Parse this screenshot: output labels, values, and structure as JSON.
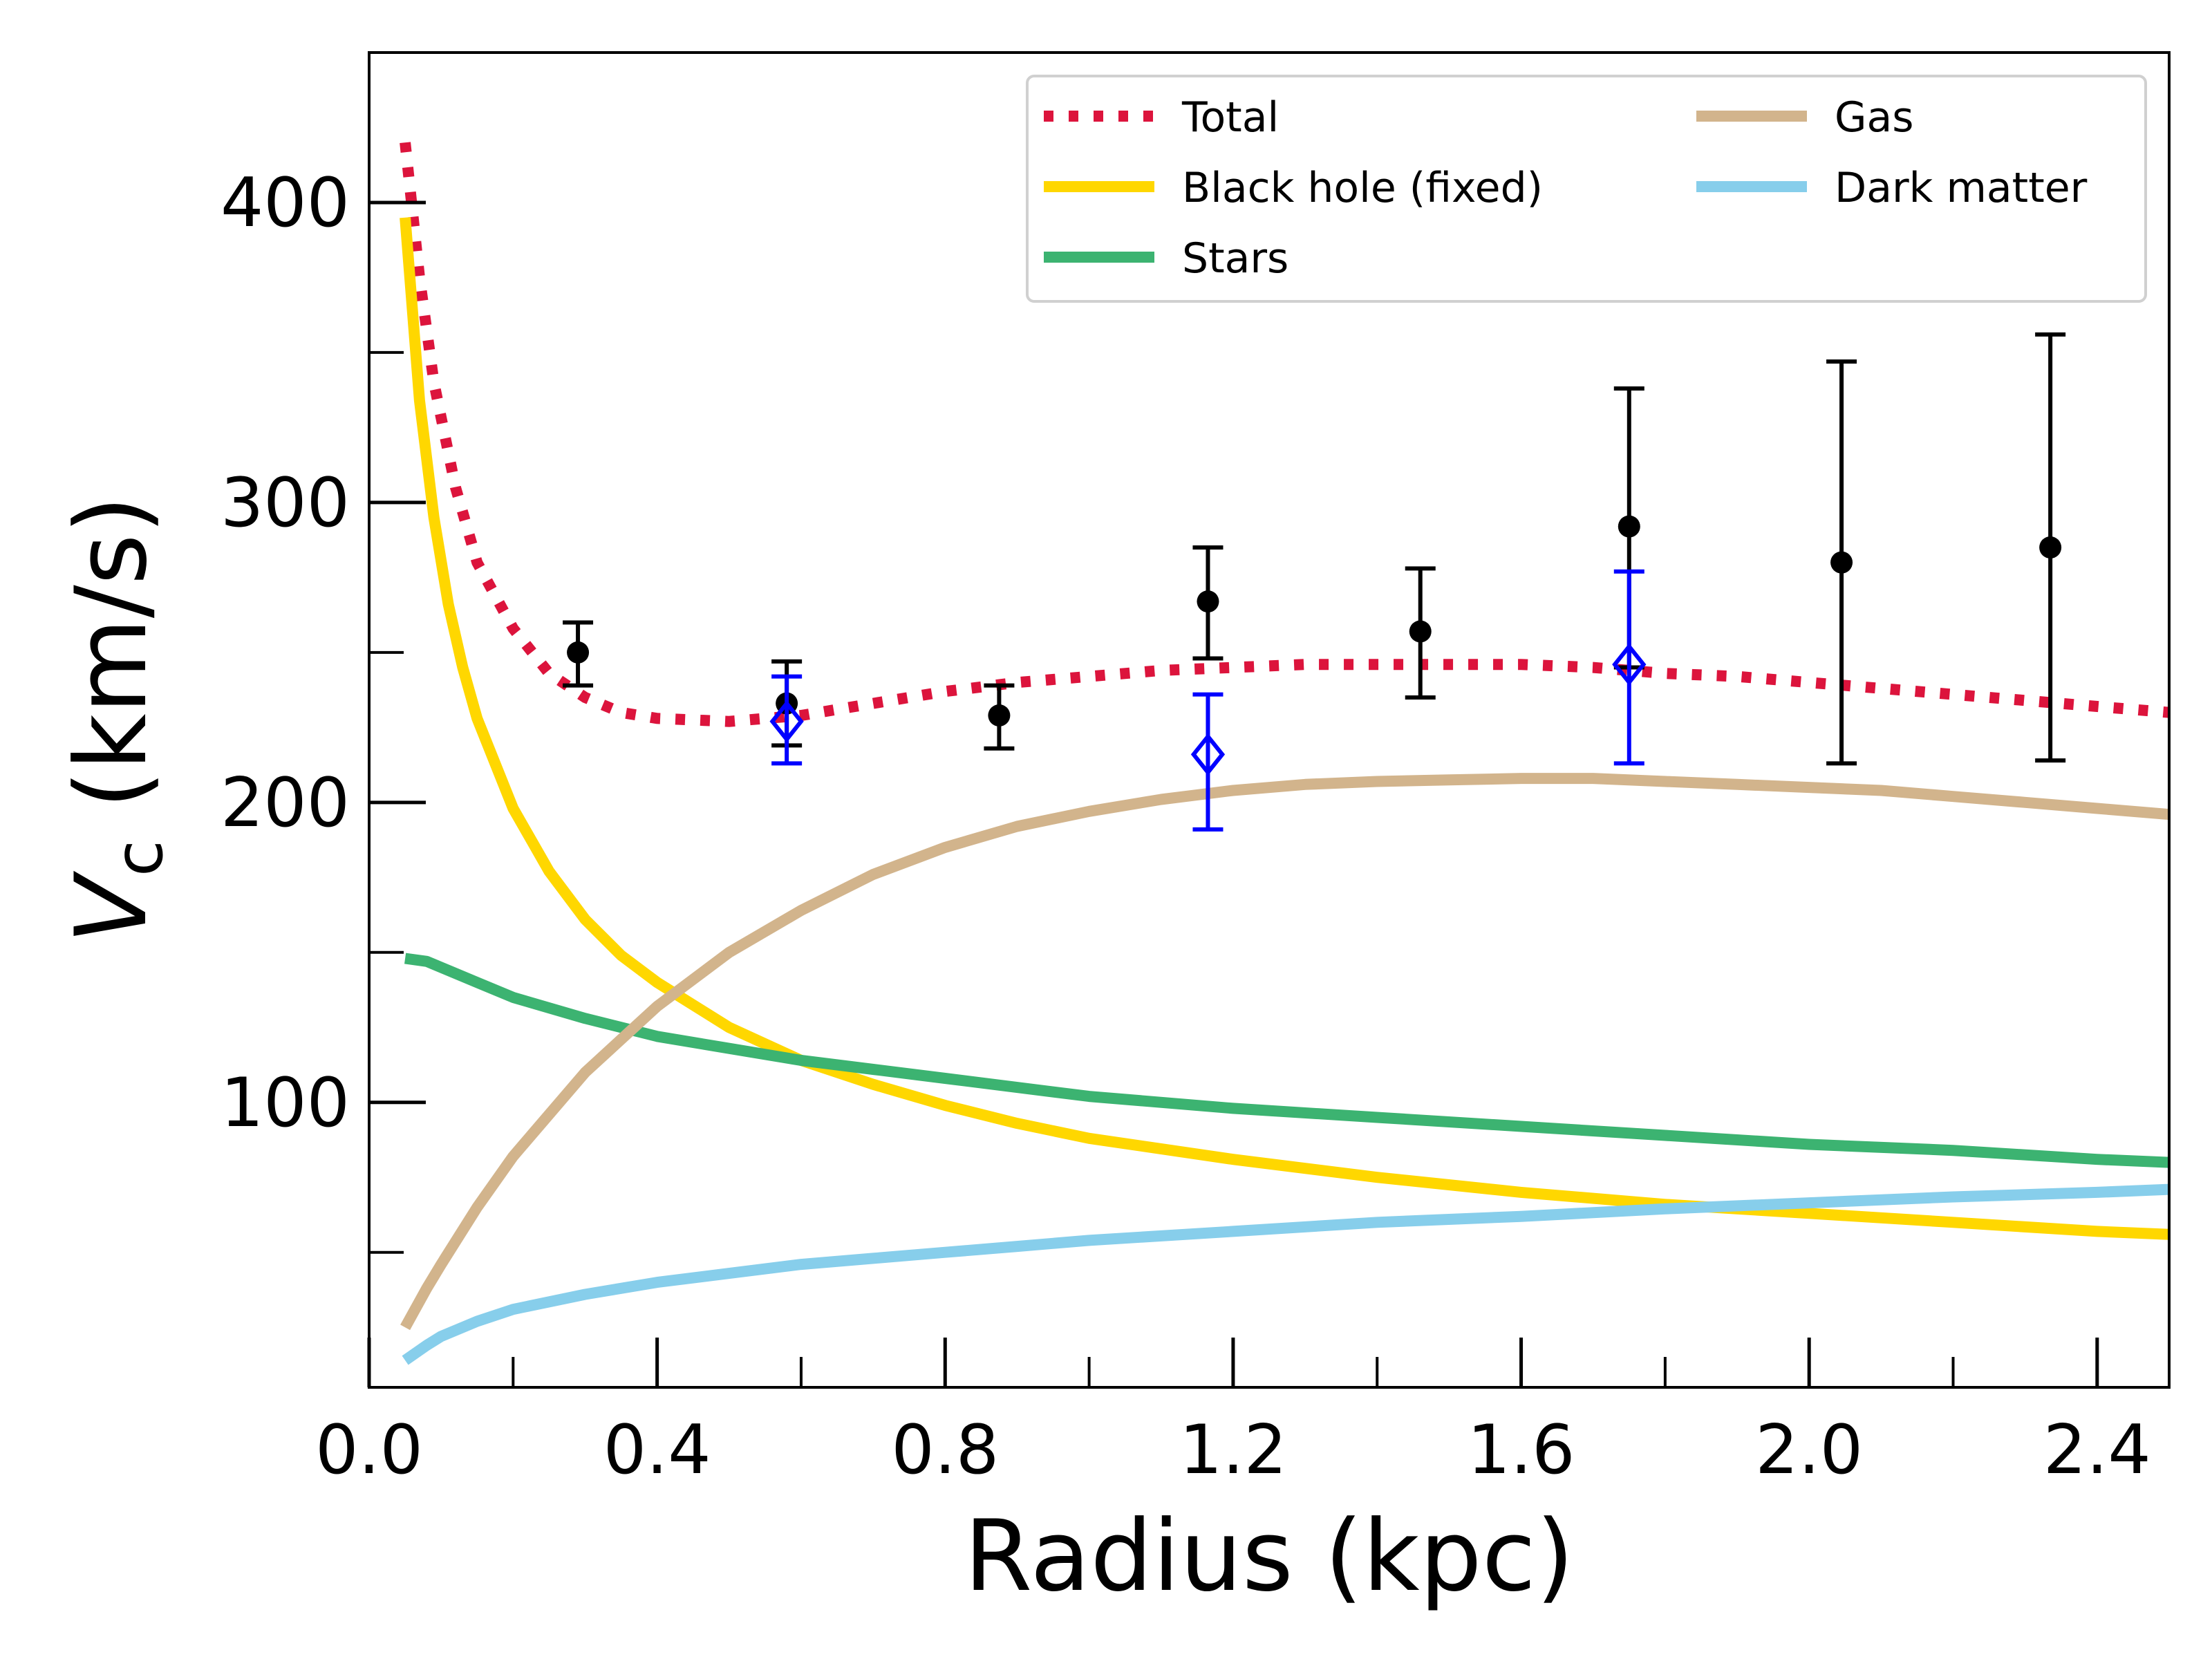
{
  "chart_data": {
    "type": "line",
    "xlabel": "Radius (kpc)",
    "ylabel_main": "V",
    "ylabel_sub": "c",
    "ylabel_rest": " (km/s)",
    "xlim": [
      0.0,
      2.5
    ],
    "ylim": [
      5,
      450
    ],
    "x_ticks": [
      0.0,
      0.4,
      0.8,
      1.2,
      1.6,
      2.0,
      2.4
    ],
    "x_tick_labels": [
      "0.0",
      "0.4",
      "0.8",
      "1.2",
      "1.6",
      "2.0",
      "2.4"
    ],
    "x_minor_ticks": [
      0.2,
      0.6,
      1.0,
      1.4,
      1.8,
      2.2
    ],
    "y_ticks": [
      100,
      200,
      300,
      400
    ],
    "y_tick_labels": [
      "100",
      "200",
      "300",
      "400"
    ],
    "y_minor_ticks": [
      50,
      150,
      250,
      350
    ],
    "grid": false,
    "legend_position": "top-right",
    "series": [
      {
        "name": "Total",
        "style": "dotted",
        "color": "#dc143c",
        "points": [
          [
            0.05,
            420
          ],
          [
            0.07,
            375
          ],
          [
            0.09,
            340
          ],
          [
            0.12,
            305
          ],
          [
            0.15,
            280
          ],
          [
            0.2,
            258
          ],
          [
            0.25,
            243
          ],
          [
            0.3,
            235
          ],
          [
            0.35,
            230
          ],
          [
            0.4,
            228
          ],
          [
            0.5,
            227
          ],
          [
            0.6,
            229
          ],
          [
            0.7,
            233
          ],
          [
            0.8,
            237
          ],
          [
            0.9,
            240
          ],
          [
            1.0,
            242
          ],
          [
            1.1,
            244
          ],
          [
            1.2,
            245
          ],
          [
            1.3,
            246
          ],
          [
            1.4,
            246
          ],
          [
            1.5,
            246
          ],
          [
            1.6,
            246
          ],
          [
            1.7,
            245
          ],
          [
            1.8,
            243
          ],
          [
            1.9,
            242
          ],
          [
            2.0,
            240
          ],
          [
            2.1,
            238
          ],
          [
            2.2,
            236
          ],
          [
            2.3,
            234
          ],
          [
            2.4,
            232
          ],
          [
            2.5,
            230
          ]
        ]
      },
      {
        "name": "Black hole (fixed)",
        "style": "solid",
        "color": "#ffd700",
        "points": [
          [
            0.05,
            395
          ],
          [
            0.07,
            334
          ],
          [
            0.09,
            295
          ],
          [
            0.11,
            266
          ],
          [
            0.13,
            245
          ],
          [
            0.15,
            228
          ],
          [
            0.2,
            198
          ],
          [
            0.25,
            177
          ],
          [
            0.3,
            161
          ],
          [
            0.35,
            149
          ],
          [
            0.4,
            140
          ],
          [
            0.5,
            125
          ],
          [
            0.6,
            114
          ],
          [
            0.7,
            106
          ],
          [
            0.8,
            99
          ],
          [
            0.9,
            93
          ],
          [
            1.0,
            88
          ],
          [
            1.2,
            81
          ],
          [
            1.4,
            75
          ],
          [
            1.6,
            70
          ],
          [
            1.8,
            66
          ],
          [
            2.0,
            63
          ],
          [
            2.2,
            60
          ],
          [
            2.4,
            57
          ],
          [
            2.5,
            56
          ]
        ]
      },
      {
        "name": "Stars",
        "style": "solid",
        "color": "#3cb371",
        "points": [
          [
            0.05,
            148
          ],
          [
            0.08,
            147
          ],
          [
            0.1,
            145
          ],
          [
            0.15,
            140
          ],
          [
            0.2,
            135
          ],
          [
            0.3,
            128
          ],
          [
            0.4,
            122
          ],
          [
            0.5,
            118
          ],
          [
            0.6,
            114
          ],
          [
            0.7,
            111
          ],
          [
            0.8,
            108
          ],
          [
            0.9,
            105
          ],
          [
            1.0,
            102
          ],
          [
            1.2,
            98
          ],
          [
            1.4,
            95
          ],
          [
            1.6,
            92
          ],
          [
            1.8,
            89
          ],
          [
            2.0,
            86
          ],
          [
            2.2,
            84
          ],
          [
            2.4,
            81
          ],
          [
            2.5,
            80
          ]
        ]
      },
      {
        "name": "Gas",
        "style": "solid",
        "color": "#d2b48c",
        "points": [
          [
            0.05,
            25
          ],
          [
            0.08,
            38
          ],
          [
            0.1,
            46
          ],
          [
            0.15,
            65
          ],
          [
            0.2,
            82
          ],
          [
            0.3,
            110
          ],
          [
            0.4,
            132
          ],
          [
            0.5,
            150
          ],
          [
            0.6,
            164
          ],
          [
            0.7,
            176
          ],
          [
            0.8,
            185
          ],
          [
            0.9,
            192
          ],
          [
            1.0,
            197
          ],
          [
            1.1,
            201
          ],
          [
            1.2,
            204
          ],
          [
            1.3,
            206
          ],
          [
            1.4,
            207
          ],
          [
            1.5,
            207.5
          ],
          [
            1.6,
            208
          ],
          [
            1.7,
            208
          ],
          [
            1.8,
            207
          ],
          [
            1.9,
            206
          ],
          [
            2.0,
            205
          ],
          [
            2.1,
            204
          ],
          [
            2.2,
            202
          ],
          [
            2.3,
            200
          ],
          [
            2.4,
            198
          ],
          [
            2.5,
            196
          ]
        ]
      },
      {
        "name": "Dark matter",
        "style": "solid",
        "color": "#87ceeb",
        "points": [
          [
            0.05,
            14
          ],
          [
            0.08,
            19
          ],
          [
            0.1,
            22
          ],
          [
            0.15,
            27
          ],
          [
            0.2,
            31
          ],
          [
            0.3,
            36
          ],
          [
            0.4,
            40
          ],
          [
            0.5,
            43
          ],
          [
            0.6,
            46
          ],
          [
            0.7,
            48
          ],
          [
            0.8,
            50
          ],
          [
            0.9,
            52
          ],
          [
            1.0,
            54
          ],
          [
            1.2,
            57
          ],
          [
            1.4,
            60
          ],
          [
            1.6,
            62
          ],
          [
            1.8,
            64.5
          ],
          [
            2.0,
            66.5
          ],
          [
            2.2,
            68.5
          ],
          [
            2.4,
            70
          ],
          [
            2.5,
            71
          ]
        ]
      }
    ],
    "data_points": [
      {
        "marker": "circle",
        "color": "#000000",
        "points": [
          {
            "x": 0.29,
            "y": 250,
            "err_low": 239,
            "err_high": 260
          },
          {
            "x": 0.58,
            "y": 233,
            "err_low": 219,
            "err_high": 247
          },
          {
            "x": 0.875,
            "y": 229,
            "err_low": 218,
            "err_high": 239
          },
          {
            "x": 1.165,
            "y": 267,
            "err_low": 248,
            "err_high": 285
          },
          {
            "x": 1.46,
            "y": 257,
            "err_low": 235,
            "err_high": 278
          },
          {
            "x": 1.75,
            "y": 292,
            "err_low": 245,
            "err_high": 338
          },
          {
            "x": 2.045,
            "y": 280,
            "err_low": 213,
            "err_high": 347
          },
          {
            "x": 2.335,
            "y": 285,
            "err_low": 214,
            "err_high": 356
          }
        ]
      },
      {
        "marker": "diamond",
        "color": "#0000ff",
        "points": [
          {
            "x": 0.58,
            "y": 227,
            "err_low": 213,
            "err_high": 242
          },
          {
            "x": 1.165,
            "y": 216,
            "err_low": 191,
            "err_high": 236
          },
          {
            "x": 1.75,
            "y": 246,
            "err_low": 213,
            "err_high": 277
          }
        ]
      }
    ],
    "legend": [
      {
        "label": "Total",
        "series_index": 0
      },
      {
        "label": "Black hole (fixed)",
        "series_index": 1
      },
      {
        "label": "Stars",
        "series_index": 2
      },
      {
        "label": "Gas",
        "series_index": 3
      },
      {
        "label": "Dark matter",
        "series_index": 4
      }
    ]
  }
}
